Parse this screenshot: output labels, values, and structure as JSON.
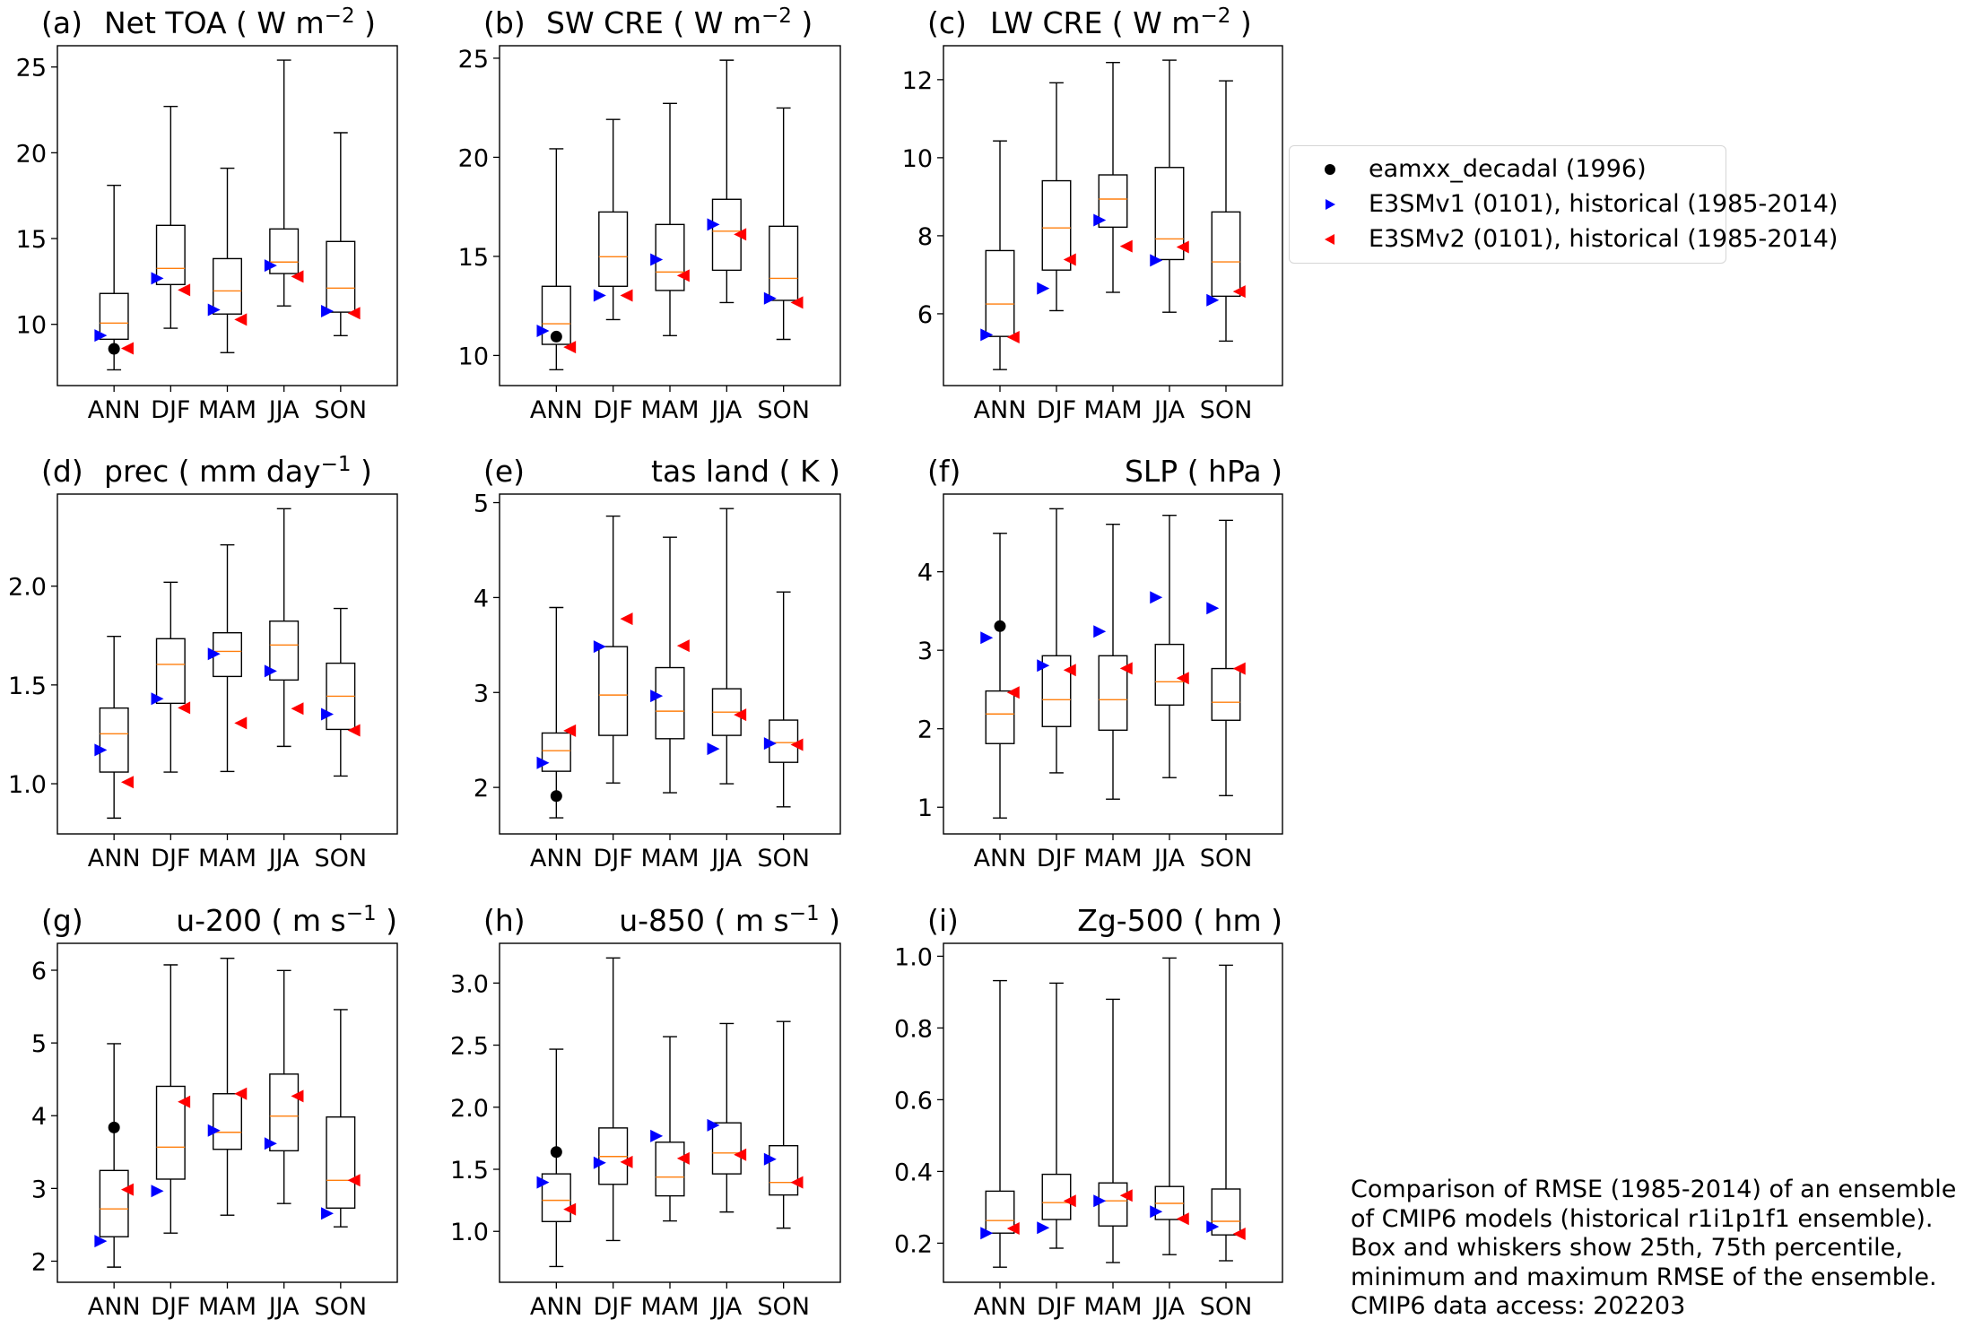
{
  "chart_data": {
    "type": "box",
    "grid": false,
    "categories": [
      "ANN",
      "DJF",
      "MAM",
      "JJA",
      "SON"
    ],
    "legend": {
      "placement": "right-of-top-row",
      "entries": [
        {
          "key": "eamxx",
          "label": "eamxx_decadal (1996)",
          "marker": "circle",
          "color": "#000000"
        },
        {
          "key": "v1",
          "label": "E3SMv1 (0101), historical (1985-2014)",
          "marker": "triangle-right",
          "color": "#0000ff"
        },
        {
          "key": "v2",
          "label": "E3SMv2 (0101), historical (1985-2014)",
          "marker": "triangle-left",
          "color": "#ff0000"
        }
      ]
    },
    "colors": {
      "box": "#000000",
      "median": "#ff7f0e"
    },
    "caption": [
      "Comparison of RMSE (1985-2014) of an ensemble",
      "of CMIP6 models (historical r1i1p1f1 ensemble).",
      "Box and whiskers show 25th, 75th percentile,",
      "minimum and maximum RMSE of the ensemble.",
      "CMIP6 data access: 202203"
    ],
    "panels": [
      {
        "letter": "(a)",
        "title": "Net TOA",
        "unit_base": "W m",
        "unit_sup": "−2",
        "title_align": "left",
        "ylim": [
          6.43,
          26.24
        ],
        "yticks": [
          10,
          15,
          20,
          25
        ],
        "ytick_labels": [
          "10",
          "15",
          "20",
          "25"
        ],
        "boxes": [
          {
            "min": 7.35,
            "q1": 9.13,
            "median": 10.07,
            "q3": 11.8,
            "max": 18.1
          },
          {
            "min": 9.77,
            "q1": 12.32,
            "median": 13.26,
            "q3": 15.77,
            "max": 22.7
          },
          {
            "min": 8.35,
            "q1": 10.6,
            "median": 11.95,
            "q3": 13.83,
            "max": 19.1
          },
          {
            "min": 11.07,
            "q1": 12.96,
            "median": 13.63,
            "q3": 15.56,
            "max": 25.4
          },
          {
            "min": 9.34,
            "q1": 10.71,
            "median": 12.11,
            "q3": 14.83,
            "max": 21.17
          }
        ],
        "eamxx": [
          8.57,
          null,
          null,
          null,
          null
        ],
        "v1": [
          9.35,
          12.68,
          10.85,
          13.43,
          10.77
        ],
        "v2": [
          8.6,
          12.0,
          10.28,
          12.79,
          10.65
        ]
      },
      {
        "letter": "(b)",
        "title": "SW CRE",
        "unit_base": "W m",
        "unit_sup": "−2",
        "title_align": "left",
        "ylim": [
          8.48,
          25.63
        ],
        "yticks": [
          10,
          15,
          20,
          25
        ],
        "ytick_labels": [
          "10",
          "15",
          "20",
          "25"
        ],
        "boxes": [
          {
            "min": 9.28,
            "q1": 10.56,
            "median": 11.6,
            "q3": 13.49,
            "max": 20.43
          },
          {
            "min": 11.81,
            "q1": 13.49,
            "median": 14.98,
            "q3": 17.24,
            "max": 21.91
          },
          {
            "min": 11.0,
            "q1": 13.28,
            "median": 14.21,
            "q3": 16.61,
            "max": 22.72
          },
          {
            "min": 12.67,
            "q1": 14.3,
            "median": 16.27,
            "q3": 17.88,
            "max": 24.9
          },
          {
            "min": 10.81,
            "q1": 12.78,
            "median": 13.89,
            "q3": 16.52,
            "max": 22.49
          }
        ],
        "eamxx": [
          10.95,
          null,
          null,
          null,
          null
        ],
        "v1": [
          11.24,
          13.03,
          14.84,
          16.61,
          12.88
        ],
        "v2": [
          10.42,
          13.03,
          14.03,
          16.11,
          12.67
        ]
      },
      {
        "letter": "(c)",
        "title": "LW CRE",
        "unit_base": "W m",
        "unit_sup": "−2",
        "title_align": "left",
        "ylim": [
          4.16,
          12.87
        ],
        "yticks": [
          6,
          8,
          10,
          12
        ],
        "ytick_labels": [
          "6",
          "8",
          "10",
          "12"
        ],
        "boxes": [
          {
            "min": 4.57,
            "q1": 5.42,
            "median": 6.25,
            "q3": 7.62,
            "max": 10.43
          },
          {
            "min": 6.08,
            "q1": 7.12,
            "median": 8.2,
            "q3": 9.41,
            "max": 11.92
          },
          {
            "min": 6.55,
            "q1": 8.22,
            "median": 8.94,
            "q3": 9.56,
            "max": 12.44
          },
          {
            "min": 6.04,
            "q1": 7.39,
            "median": 7.92,
            "q3": 9.75,
            "max": 12.5
          },
          {
            "min": 5.3,
            "q1": 6.45,
            "median": 7.33,
            "q3": 8.61,
            "max": 11.97
          }
        ],
        "eamxx": [
          null,
          null,
          null,
          null,
          null
        ],
        "v1": [
          5.46,
          6.65,
          8.4,
          7.37,
          6.35
        ],
        "v2": [
          5.4,
          7.39,
          7.73,
          7.71,
          6.57
        ]
      },
      {
        "letter": "(d)",
        "title": "prec",
        "unit_base": "mm day",
        "unit_sup": "−1",
        "title_align": "left",
        "ylim": [
          0.746,
          2.466
        ],
        "yticks": [
          1.0,
          1.5,
          2.0
        ],
        "ytick_labels": [
          "1.0",
          "1.5",
          "2.0"
        ],
        "boxes": [
          {
            "min": 0.826,
            "q1": 1.059,
            "median": 1.253,
            "q3": 1.383,
            "max": 1.746
          },
          {
            "min": 1.059,
            "q1": 1.407,
            "median": 1.604,
            "q3": 1.734,
            "max": 2.02
          },
          {
            "min": 1.062,
            "q1": 1.543,
            "median": 1.67,
            "q3": 1.764,
            "max": 2.209
          },
          {
            "min": 1.189,
            "q1": 1.525,
            "median": 1.702,
            "q3": 1.823,
            "max": 2.392
          },
          {
            "min": 1.039,
            "q1": 1.275,
            "median": 1.443,
            "q3": 1.61,
            "max": 1.887
          }
        ],
        "eamxx": [
          null,
          null,
          null,
          null,
          null
        ],
        "v1": [
          1.171,
          1.43,
          1.657,
          1.57,
          1.352
        ],
        "v2": [
          1.008,
          1.384,
          1.307,
          1.38,
          1.27
        ]
      },
      {
        "letter": "(e)",
        "title": "tas land",
        "unit_base": "K",
        "unit_sup": "",
        "title_align": "right",
        "ylim": [
          1.51,
          5.09
        ],
        "yticks": [
          2,
          3,
          4,
          5
        ],
        "ytick_labels": [
          "2",
          "3",
          "4",
          "5"
        ],
        "boxes": [
          {
            "min": 1.679,
            "q1": 2.17,
            "median": 2.387,
            "q3": 2.573,
            "max": 3.895
          },
          {
            "min": 2.047,
            "q1": 2.548,
            "median": 2.973,
            "q3": 3.483,
            "max": 4.858
          },
          {
            "min": 1.944,
            "q1": 2.513,
            "median": 2.803,
            "q3": 3.262,
            "max": 4.635
          },
          {
            "min": 2.038,
            "q1": 2.548,
            "median": 2.793,
            "q3": 3.039,
            "max": 4.937
          },
          {
            "min": 1.795,
            "q1": 2.264,
            "median": 2.472,
            "q3": 2.709,
            "max": 4.059
          }
        ],
        "eamxx": [
          1.909,
          null,
          null,
          null,
          null
        ],
        "v1": [
          2.258,
          3.483,
          2.963,
          2.406,
          2.463
        ],
        "v2": [
          2.598,
          3.776,
          3.492,
          2.765,
          2.45
        ]
      },
      {
        "letter": "(f)",
        "title": "SLP",
        "unit_base": "hPa",
        "unit_sup": "",
        "title_align": "right",
        "ylim": [
          0.66,
          4.99
        ],
        "yticks": [
          1,
          2,
          3,
          4
        ],
        "ytick_labels": [
          "1",
          "2",
          "3",
          "4"
        ],
        "boxes": [
          {
            "min": 0.863,
            "q1": 1.811,
            "median": 2.188,
            "q3": 2.481,
            "max": 4.49
          },
          {
            "min": 1.438,
            "q1": 2.028,
            "median": 2.37,
            "q3": 2.93,
            "max": 4.803
          },
          {
            "min": 1.103,
            "q1": 1.982,
            "median": 2.37,
            "q3": 2.93,
            "max": 4.605
          },
          {
            "min": 1.377,
            "q1": 2.302,
            "median": 2.599,
            "q3": 3.075,
            "max": 4.719
          },
          {
            "min": 1.148,
            "q1": 2.108,
            "median": 2.337,
            "q3": 2.767,
            "max": 4.655
          }
        ],
        "eamxx": [
          3.307,
          null,
          null,
          null,
          null
        ],
        "v1": [
          3.159,
          2.805,
          3.239,
          3.673,
          3.536
        ],
        "v2": [
          2.462,
          2.748,
          2.77,
          2.645,
          2.767
        ]
      },
      {
        "letter": "(g)",
        "title": "u-200",
        "unit_base": "m s",
        "unit_sup": "−1",
        "title_align": "right",
        "ylim": [
          1.71,
          6.37
        ],
        "yticks": [
          2,
          3,
          4,
          5,
          6
        ],
        "ytick_labels": [
          "2",
          "3",
          "4",
          "5",
          "6"
        ],
        "boxes": [
          {
            "min": 1.918,
            "q1": 2.336,
            "median": 2.718,
            "q3": 3.247,
            "max": 4.99
          },
          {
            "min": 2.386,
            "q1": 3.128,
            "median": 3.568,
            "q3": 4.404,
            "max": 6.074
          },
          {
            "min": 2.632,
            "q1": 3.538,
            "median": 3.772,
            "q3": 4.302,
            "max": 6.164
          },
          {
            "min": 2.792,
            "q1": 3.518,
            "median": 3.994,
            "q3": 4.572,
            "max": 5.996
          },
          {
            "min": 2.472,
            "q1": 2.73,
            "median": 3.112,
            "q3": 3.982,
            "max": 5.458
          }
        ],
        "eamxx": [
          3.838,
          null,
          null,
          null,
          null
        ],
        "v1": [
          2.275,
          2.964,
          3.797,
          3.617,
          2.656
        ],
        "v2": [
          2.984,
          4.191,
          4.302,
          4.269,
          3.112
        ]
      },
      {
        "letter": "(h)",
        "title": "u-850",
        "unit_base": "m s",
        "unit_sup": "−1",
        "title_align": "right",
        "ylim": [
          0.59,
          3.32
        ],
        "yticks": [
          1.0,
          1.5,
          2.0,
          2.5,
          3.0
        ],
        "ytick_labels": [
          "1.0",
          "1.5",
          "2.0",
          "2.5",
          "3.0"
        ],
        "boxes": [
          {
            "min": 0.717,
            "q1": 1.079,
            "median": 1.25,
            "q3": 1.463,
            "max": 2.467
          },
          {
            "min": 0.926,
            "q1": 1.379,
            "median": 1.603,
            "q3": 1.833,
            "max": 3.202
          },
          {
            "min": 1.084,
            "q1": 1.286,
            "median": 1.437,
            "q3": 1.718,
            "max": 2.568
          },
          {
            "min": 1.156,
            "q1": 1.463,
            "median": 1.631,
            "q3": 1.874,
            "max": 2.674
          },
          {
            "min": 1.026,
            "q1": 1.293,
            "median": 1.394,
            "q3": 1.69,
            "max": 2.69
          }
        ],
        "eamxx": [
          1.639,
          null,
          null,
          null,
          null
        ],
        "v1": [
          1.394,
          1.552,
          1.768,
          1.855,
          1.581
        ],
        "v2": [
          1.178,
          1.559,
          1.588,
          1.617,
          1.394
        ]
      },
      {
        "letter": "(i)",
        "title": "Zg-500",
        "unit_base": "hm",
        "unit_sup": "",
        "title_align": "right",
        "ylim": [
          0.091,
          1.036
        ],
        "yticks": [
          0.2,
          0.4,
          0.6,
          0.8,
          1.0
        ],
        "ytick_labels": [
          "0.2",
          "0.4",
          "0.6",
          "0.8",
          "1.0"
        ],
        "boxes": [
          {
            "min": 0.133,
            "q1": 0.228,
            "median": 0.263,
            "q3": 0.345,
            "max": 0.932
          },
          {
            "min": 0.186,
            "q1": 0.266,
            "median": 0.313,
            "q3": 0.392,
            "max": 0.925
          },
          {
            "min": 0.146,
            "q1": 0.248,
            "median": 0.318,
            "q3": 0.368,
            "max": 0.88
          },
          {
            "min": 0.168,
            "q1": 0.266,
            "median": 0.311,
            "q3": 0.358,
            "max": 0.995
          },
          {
            "min": 0.151,
            "q1": 0.223,
            "median": 0.261,
            "q3": 0.351,
            "max": 0.975
          }
        ],
        "eamxx": [
          null,
          null,
          null,
          null,
          null
        ],
        "v1": [
          0.228,
          0.243,
          0.318,
          0.288,
          0.246
        ],
        "v2": [
          0.241,
          0.318,
          0.333,
          0.268,
          0.226
        ]
      }
    ]
  }
}
